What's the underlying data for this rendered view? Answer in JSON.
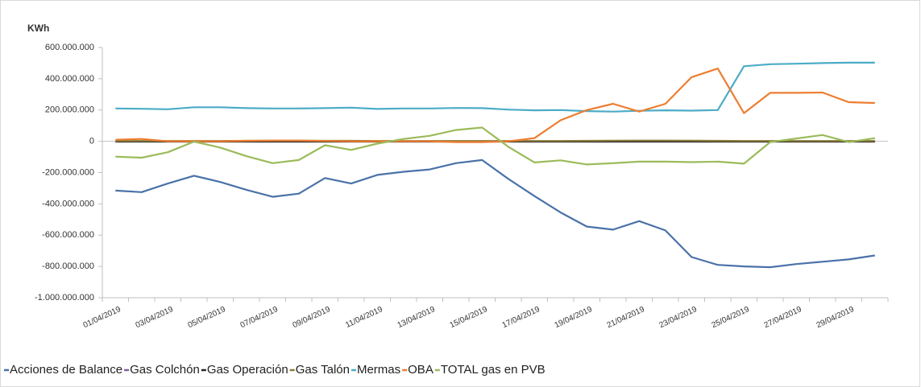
{
  "chart_data": {
    "type": "line",
    "y_label": "KWh",
    "categories": [
      "01/04/2019",
      null,
      "03/04/2019",
      null,
      "05/04/2019",
      null,
      "07/04/2019",
      null,
      "09/04/2019",
      null,
      "11/04/2019",
      null,
      "13/04/2019",
      null,
      "15/04/2019",
      null,
      "17/04/2019",
      null,
      "19/04/2019",
      null,
      "21/04/2019",
      null,
      "23/04/2019",
      null,
      "25/04/2019",
      null,
      "27/04/2019",
      null,
      "29/04/2019",
      null
    ],
    "ylim": [
      -1000000000,
      600000000
    ],
    "yticks": [
      {
        "value": -1000000000,
        "label": "-1.000.000.000"
      },
      {
        "value": -800000000,
        "label": "-800.000.000"
      },
      {
        "value": -600000000,
        "label": "-600.000.000"
      },
      {
        "value": -400000000,
        "label": "-400.000.000"
      },
      {
        "value": -200000000,
        "label": "-200.000.000"
      },
      0,
      {
        "value": 200000000,
        "label": "200.000.000"
      },
      {
        "value": 400000000,
        "label": "400.000.000"
      },
      {
        "value": 600000000,
        "label": "600.000.000"
      }
    ],
    "grid": false,
    "legend": "bottom",
    "series": [
      {
        "name": "Acciones de Balance",
        "color": "#4a72a8",
        "values": [
          -315000000,
          -325000000,
          -270000000,
          -220000000,
          -260000000,
          -310000000,
          -355000000,
          -335000000,
          -235000000,
          -270000000,
          -215000000,
          -195000000,
          -180000000,
          -140000000,
          -120000000,
          -240000000,
          -350000000,
          -455000000,
          -545000000,
          -565000000,
          -510000000,
          -570000000,
          -740000000,
          -790000000,
          -800000000,
          -805000000,
          -785000000,
          -770000000,
          -755000000,
          -730000000
        ]
      },
      {
        "name": "Gas Colchón",
        "color": "#7e5fa1",
        "values": [
          0,
          0,
          0,
          0,
          0,
          0,
          0,
          0,
          0,
          0,
          0,
          0,
          0,
          0,
          0,
          0,
          0,
          0,
          0,
          0,
          0,
          0,
          0,
          0,
          0,
          0,
          0,
          0,
          0,
          0
        ]
      },
      {
        "name": "Gas Operación",
        "color": "#262626",
        "values": [
          -2000000,
          -2000000,
          -2000000,
          -2000000,
          -2000000,
          -2000000,
          -2000000,
          -2000000,
          -2000000,
          -2000000,
          -2000000,
          -2000000,
          -2000000,
          -2000000,
          -2000000,
          -2000000,
          -2000000,
          -2000000,
          -2000000,
          -2000000,
          -2000000,
          -2000000,
          -2000000,
          -2000000,
          -2000000,
          -2000000,
          -2000000,
          -2000000,
          -2000000,
          -2000000
        ]
      },
      {
        "name": "Gas Talón",
        "color": "#8a7a3a",
        "values": [
          2000000,
          2000000,
          2000000,
          2000000,
          2000000,
          3000000,
          4000000,
          4000000,
          3000000,
          3000000,
          2000000,
          2000000,
          2000000,
          2000000,
          2000000,
          2000000,
          2000000,
          2000000,
          3000000,
          4000000,
          5000000,
          5000000,
          4000000,
          3000000,
          2000000,
          2000000,
          2000000,
          2000000,
          2000000,
          2000000
        ]
      },
      {
        "name": "Mermas",
        "color": "#4bacc6",
        "values": [
          210000000,
          208000000,
          205000000,
          218000000,
          218000000,
          212000000,
          210000000,
          210000000,
          212000000,
          215000000,
          207000000,
          210000000,
          210000000,
          213000000,
          212000000,
          203000000,
          198000000,
          200000000,
          193000000,
          190000000,
          195000000,
          198000000,
          196000000,
          200000000,
          480000000,
          493000000,
          496000000,
          500000000,
          503000000,
          503000000
        ]
      },
      {
        "name": "OBA",
        "color": "#ed7d31",
        "values": [
          10000000,
          15000000,
          0,
          0,
          0,
          3000000,
          5000000,
          5000000,
          2000000,
          0,
          0,
          0,
          0,
          -5000000,
          -5000000,
          0,
          20000000,
          135000000,
          200000000,
          240000000,
          190000000,
          240000000,
          410000000,
          465000000,
          180000000,
          310000000,
          310000000,
          312000000,
          250000000,
          245000000
        ]
      },
      {
        "name": "TOTAL gas en PVB",
        "color": "#9bbb59",
        "values": [
          -98000000,
          -105000000,
          -70000000,
          -2000000,
          -40000000,
          -95000000,
          -140000000,
          -120000000,
          -25000000,
          -55000000,
          -15000000,
          15000000,
          35000000,
          72000000,
          88000000,
          -35000000,
          -135000000,
          -122000000,
          -148000000,
          -140000000,
          -130000000,
          -130000000,
          -133000000,
          -130000000,
          -143000000,
          -5000000,
          18000000,
          40000000,
          -5000000,
          20000000
        ]
      }
    ]
  }
}
